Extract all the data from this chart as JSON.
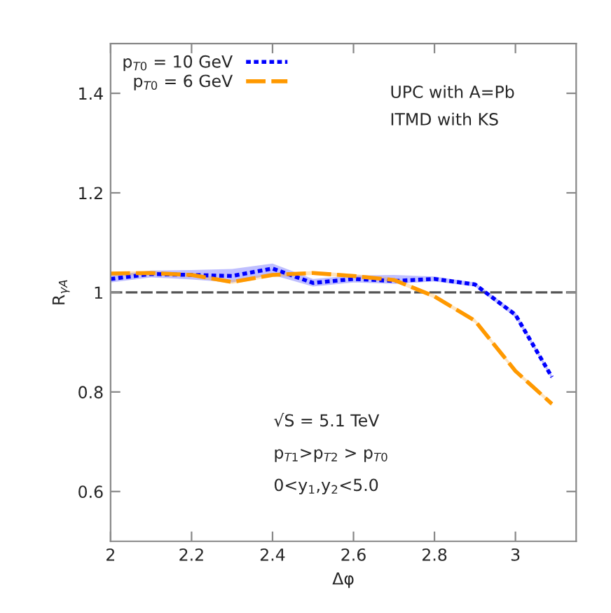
{
  "chart_data": {
    "type": "line",
    "xlabel": "Δφ",
    "ylabel": "R$_{γA}$",
    "xlim": [
      2,
      3.15
    ],
    "xticks": [
      2,
      2.2,
      2.4,
      2.6,
      2.8,
      3
    ],
    "ylim": [
      0.5,
      1.5
    ],
    "yticks": [
      {
        "value": 0.6,
        "label": "0.6"
      },
      {
        "value": 0.8,
        "label": "0.8"
      },
      1,
      {
        "value": 1.2,
        "label": "1.2"
      },
      {
        "value": 1.4,
        "label": "1.4"
      }
    ],
    "x": [
      2.0,
      2.1,
      2.2,
      2.3,
      2.4,
      2.5,
      2.6,
      2.7,
      2.8,
      2.9,
      3.0,
      3.09
    ],
    "series": [
      {
        "name": "p$_{T0}$ = 10 GeV",
        "color": "#0000ff",
        "line_style": "dotted",
        "values": [
          1.027,
          1.037,
          1.035,
          1.033,
          1.048,
          1.019,
          1.027,
          1.023,
          1.027,
          1.016,
          0.955,
          0.83
        ],
        "lower": [
          1.02,
          1.03,
          1.026,
          1.02,
          1.035,
          1.012,
          1.02,
          1.017,
          1.022,
          1.012,
          0.95,
          0.826
        ],
        "upper": [
          1.034,
          1.044,
          1.045,
          1.047,
          1.058,
          1.027,
          1.034,
          1.035,
          1.032,
          1.02,
          0.96,
          0.834
        ]
      },
      {
        "name": "p$_{T0}$ = 6 GeV",
        "color": "#ff9900",
        "line_style": "dashed",
        "values": [
          1.038,
          1.039,
          1.035,
          1.021,
          1.035,
          1.039,
          1.033,
          1.025,
          0.992,
          0.943,
          0.842,
          0.776
        ],
        "lower": [
          1.034,
          1.035,
          1.031,
          1.017,
          1.031,
          1.035,
          1.029,
          1.021,
          0.988,
          0.939,
          0.838,
          0.772
        ],
        "upper": [
          1.042,
          1.043,
          1.039,
          1.025,
          1.039,
          1.043,
          1.037,
          1.029,
          0.996,
          0.947,
          0.846,
          0.78
        ]
      }
    ],
    "ref_lines": [
      {
        "axis": "y",
        "value": 1,
        "color": "#555555",
        "line_style": "dashed"
      }
    ],
    "legend": "top left",
    "grid": false,
    "annotations": [
      "UPC with A=Pb",
      "ITMD with KS",
      "√S = 5.1 TeV",
      "p$_{T1}$>p$_{T2}$ > p$_{T0}$",
      "0<y$_{1}$,y$_{2}$<5.0"
    ]
  }
}
